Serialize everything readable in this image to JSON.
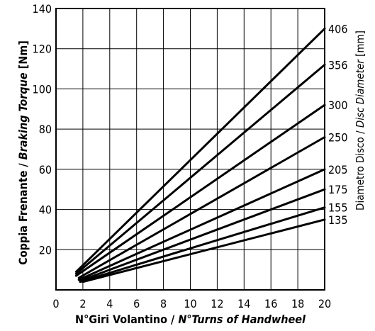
{
  "chart_data": {
    "type": "line",
    "xlim": [
      0,
      20
    ],
    "ylim": [
      0,
      140
    ],
    "xticks": [
      "0",
      "2",
      "4",
      "6",
      "8",
      "10",
      "12",
      "14",
      "16",
      "18",
      "20"
    ],
    "yticks": [
      "20",
      "40",
      "60",
      "80",
      "100",
      "120",
      "140"
    ],
    "grid": true,
    "xlabel_parts": [
      "N°Giri Volantino / ",
      "N°Turns of Handwheel"
    ],
    "ylabel_parts": [
      "Coppia Frenante / ",
      "Braking Torque",
      " [Nm]"
    ],
    "right_label_parts": [
      "Diametro Disco / ",
      "Disc Diameter",
      " [mm]"
    ],
    "series": [
      {
        "name": "406",
        "x": [
          1.5,
          20
        ],
        "y": [
          9,
          130
        ]
      },
      {
        "name": "356",
        "x": [
          1.5,
          20
        ],
        "y": [
          8,
          112
        ]
      },
      {
        "name": "300",
        "x": [
          1.5,
          20
        ],
        "y": [
          7,
          92
        ]
      },
      {
        "name": "250",
        "x": [
          1.7,
          20
        ],
        "y": [
          6,
          76
        ]
      },
      {
        "name": "205",
        "x": [
          1.7,
          20
        ],
        "y": [
          5,
          60
        ]
      },
      {
        "name": "175",
        "x": [
          1.8,
          20
        ],
        "y": [
          4.5,
          50
        ]
      },
      {
        "name": "155",
        "x": [
          1.8,
          20
        ],
        "y": [
          4,
          41
        ]
      },
      {
        "name": "135",
        "x": [
          2.0,
          20
        ],
        "y": [
          4,
          35
        ]
      }
    ]
  }
}
